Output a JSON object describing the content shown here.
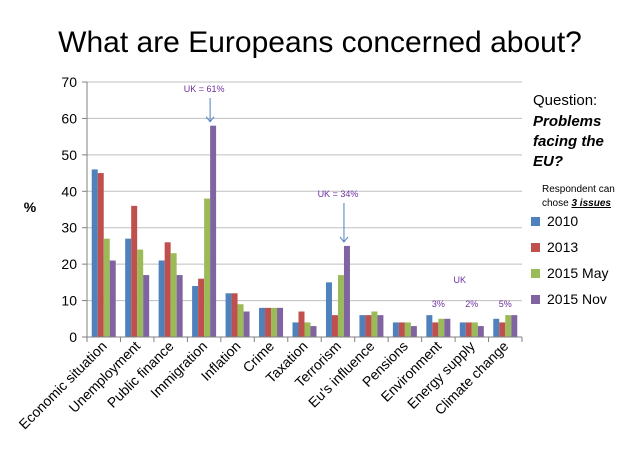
{
  "chart_data": {
    "type": "bar",
    "title": "What are Europeans concerned about?",
    "ylabel": "%",
    "ylim": [
      0,
      70
    ],
    "yticks": [
      0,
      10,
      20,
      30,
      40,
      50,
      60,
      70
    ],
    "grid": true,
    "categories": [
      "Economic situation",
      "Unemployment",
      "Public finance",
      "Immigration",
      "Inflation",
      "Crime",
      "Taxation",
      "Terrorism",
      "Eu's influence",
      "Pensions",
      "Environment",
      "Energy supply",
      "Climate change"
    ],
    "series": [
      {
        "name": "2010",
        "color": "#4F81BD",
        "values": [
          46,
          27,
          21,
          14,
          12,
          8,
          4,
          15,
          6,
          4,
          6,
          4,
          5
        ]
      },
      {
        "name": "2013",
        "color": "#C0504D",
        "values": [
          45,
          36,
          26,
          16,
          12,
          8,
          7,
          6,
          6,
          4,
          4,
          4,
          4
        ]
      },
      {
        "name": "2015 May",
        "color": "#9BBB59",
        "values": [
          27,
          24,
          23,
          38,
          9,
          8,
          4,
          17,
          7,
          4,
          5,
          4,
          6
        ]
      },
      {
        "name": "2015 Nov",
        "color": "#8064A2",
        "values": [
          21,
          17,
          17,
          58,
          7,
          8,
          3,
          25,
          6,
          3,
          5,
          3,
          6
        ]
      }
    ],
    "legend": "right",
    "annotations": [
      {
        "text": "UK = 61%",
        "category": "Immigration",
        "arrow": true
      },
      {
        "text": "UK = 34%",
        "category": "Terrorism",
        "arrow": true
      },
      {
        "text": "UK",
        "category": "Energy supply"
      },
      {
        "text": "3%",
        "category": "Environment"
      },
      {
        "text": "2%",
        "category": "Energy supply"
      },
      {
        "text": "5%",
        "category": "Climate change"
      }
    ],
    "side_note": {
      "question_label": "Question:",
      "question_lines": [
        "Problems",
        "facing the",
        "EU?"
      ],
      "respondent_lines": [
        "Respondent can",
        "chose"
      ],
      "respondent_emphasis": "3 issues"
    }
  }
}
